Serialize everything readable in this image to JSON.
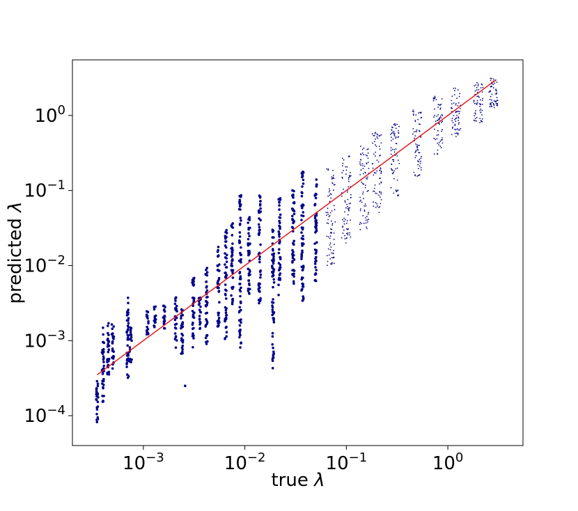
{
  "chart_data": {
    "type": "scatter",
    "title": "",
    "xlabel": "true",
    "ylabel": "predicted",
    "axis_symbol": "λ",
    "xscale": "log",
    "yscale": "log",
    "xlim": [
      0.0002,
      5.5
    ],
    "ylim": [
      4e-05,
      5.5
    ],
    "grid": false,
    "legend": "none",
    "x_ticks": [
      {
        "base": "10",
        "exp": "−3",
        "value": 0.001
      },
      {
        "base": "10",
        "exp": "−2",
        "value": 0.01
      },
      {
        "base": "10",
        "exp": "−1",
        "value": 0.1
      },
      {
        "base": "10",
        "exp": "0",
        "value": 1
      }
    ],
    "y_ticks": [
      {
        "base": "10",
        "exp": "−4",
        "value": 0.0001
      },
      {
        "base": "10",
        "exp": "−3",
        "value": 0.001
      },
      {
        "base": "10",
        "exp": "−2",
        "value": 0.01
      },
      {
        "base": "10",
        "exp": "−1",
        "value": 0.1
      },
      {
        "base": "10",
        "exp": "0",
        "value": 1
      }
    ],
    "reference_line": {
      "x": [
        0.00035,
        3.0
      ],
      "y": [
        0.00035,
        3.0
      ],
      "color": "#e31a1c"
    },
    "point_color": "#00008b",
    "point_clusters": [
      {
        "x": 0.00035,
        "y_min": 7e-05,
        "y_max": 0.0003
      },
      {
        "x": 0.0004,
        "y_min": 0.00015,
        "y_max": 0.0015
      },
      {
        "x": 0.00045,
        "y_min": 0.0003,
        "y_max": 0.0018
      },
      {
        "x": 0.0005,
        "y_min": 0.0004,
        "y_max": 0.0017
      },
      {
        "x": 0.0007,
        "y_min": 0.0003,
        "y_max": 0.004
      },
      {
        "x": 0.00075,
        "y_min": 0.0005,
        "y_max": 0.0015
      },
      {
        "x": 0.0011,
        "y_min": 0.0012,
        "y_max": 0.0028
      },
      {
        "x": 0.0013,
        "y_min": 0.0015,
        "y_max": 0.003
      },
      {
        "x": 0.0016,
        "y_min": 0.0013,
        "y_max": 0.003
      },
      {
        "x": 0.0021,
        "y_min": 0.0008,
        "y_max": 0.004
      },
      {
        "x": 0.0024,
        "y_min": 0.0006,
        "y_max": 0.003
      },
      {
        "x": 0.0026,
        "y_min": 0.00025,
        "y_max": 0.00025
      },
      {
        "x": 0.0031,
        "y_min": 0.0008,
        "y_max": 0.007
      },
      {
        "x": 0.0036,
        "y_min": 0.0013,
        "y_max": 0.004
      },
      {
        "x": 0.0042,
        "y_min": 0.0009,
        "y_max": 0.01
      },
      {
        "x": 0.0055,
        "y_min": 0.0015,
        "y_max": 0.02
      },
      {
        "x": 0.0065,
        "y_min": 0.001,
        "y_max": 0.03
      },
      {
        "x": 0.0075,
        "y_min": 0.003,
        "y_max": 0.04
      },
      {
        "x": 0.009,
        "y_min": 0.0008,
        "y_max": 0.1
      },
      {
        "x": 0.011,
        "y_min": 0.004,
        "y_max": 0.05
      },
      {
        "x": 0.014,
        "y_min": 0.003,
        "y_max": 0.09
      },
      {
        "x": 0.019,
        "y_min": 0.0004,
        "y_max": 0.03
      },
      {
        "x": 0.022,
        "y_min": 0.004,
        "y_max": 0.08
      },
      {
        "x": 0.03,
        "y_min": 0.005,
        "y_max": 0.12
      },
      {
        "x": 0.037,
        "y_min": 0.003,
        "y_max": 0.2
      },
      {
        "x": 0.05,
        "y_min": 0.006,
        "y_max": 0.15
      },
      {
        "x": 0.07,
        "y_min": 0.01,
        "y_max": 0.2
      },
      {
        "x": 0.1,
        "y_min": 0.02,
        "y_max": 0.3
      },
      {
        "x": 0.15,
        "y_min": 0.03,
        "y_max": 0.4
      },
      {
        "x": 0.2,
        "y_min": 0.05,
        "y_max": 0.6
      },
      {
        "x": 0.3,
        "y_min": 0.08,
        "y_max": 0.8
      },
      {
        "x": 0.5,
        "y_min": 0.15,
        "y_max": 1.2
      },
      {
        "x": 0.8,
        "y_min": 0.3,
        "y_max": 1.8
      },
      {
        "x": 1.2,
        "y_min": 0.5,
        "y_max": 2.4
      },
      {
        "x": 2.0,
        "y_min": 0.8,
        "y_max": 2.8
      },
      {
        "x": 2.8,
        "y_min": 1.2,
        "y_max": 3.2
      }
    ]
  }
}
